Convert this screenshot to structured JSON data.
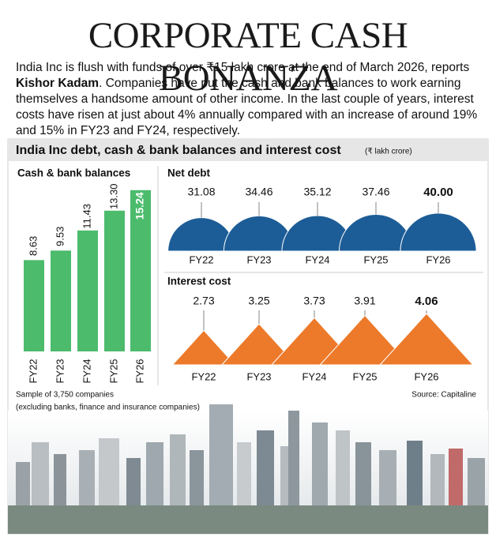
{
  "title": "CORPORATE CASH BONANZA",
  "intro": [
    "India Inc is flush with funds of over ₹15 lakh crore at the end of March 2026, reports ",
    "Kishor Kadam",
    ". Companies have put the cash and bank balances to work earning themselves a handsome amount of other income. In the last couple of years, interest costs have risen at just about 4% annually compared with an increase of around 19% and 15% in FY23 and FY24, respectively."
  ],
  "section_title": "India Inc debt, cash & bank balances and interest cost",
  "unit": "(₹ lakh crore)",
  "chart_data": [
    {
      "type": "bar",
      "title": "Cash & bank balances",
      "categories": [
        "FY22",
        "FY23",
        "FY24",
        "FY25",
        "FY26"
      ],
      "values": [
        8.63,
        9.53,
        11.43,
        13.3,
        15.24
      ],
      "value_labels": [
        "8.63",
        "9.53",
        "11.43",
        "13.30",
        "15.24"
      ],
      "color": "#4cbb6c"
    },
    {
      "type": "semicircle",
      "title": "Net debt",
      "categories": [
        "FY22",
        "FY23",
        "FY24",
        "FY25",
        "FY26"
      ],
      "values": [
        31.08,
        34.46,
        35.12,
        37.46,
        40.0
      ],
      "value_labels": [
        "31.08",
        "34.46",
        "35.12",
        "37.46",
        "40.00"
      ],
      "color": "#1d5d97"
    },
    {
      "type": "triangle",
      "title": "Interest cost",
      "categories": [
        "FY22",
        "FY23",
        "FY24",
        "FY25",
        "FY26"
      ],
      "values": [
        2.73,
        3.25,
        3.73,
        3.91,
        4.06
      ],
      "value_labels": [
        "2.73",
        "3.25",
        "3.73",
        "3.91",
        "4.06"
      ],
      "color": "#ec7a2a"
    }
  ],
  "note": [
    "Sample of 3,750 companies",
    "(excluding banks, finance and insurance companies)"
  ],
  "source": "Source: Capitaline"
}
